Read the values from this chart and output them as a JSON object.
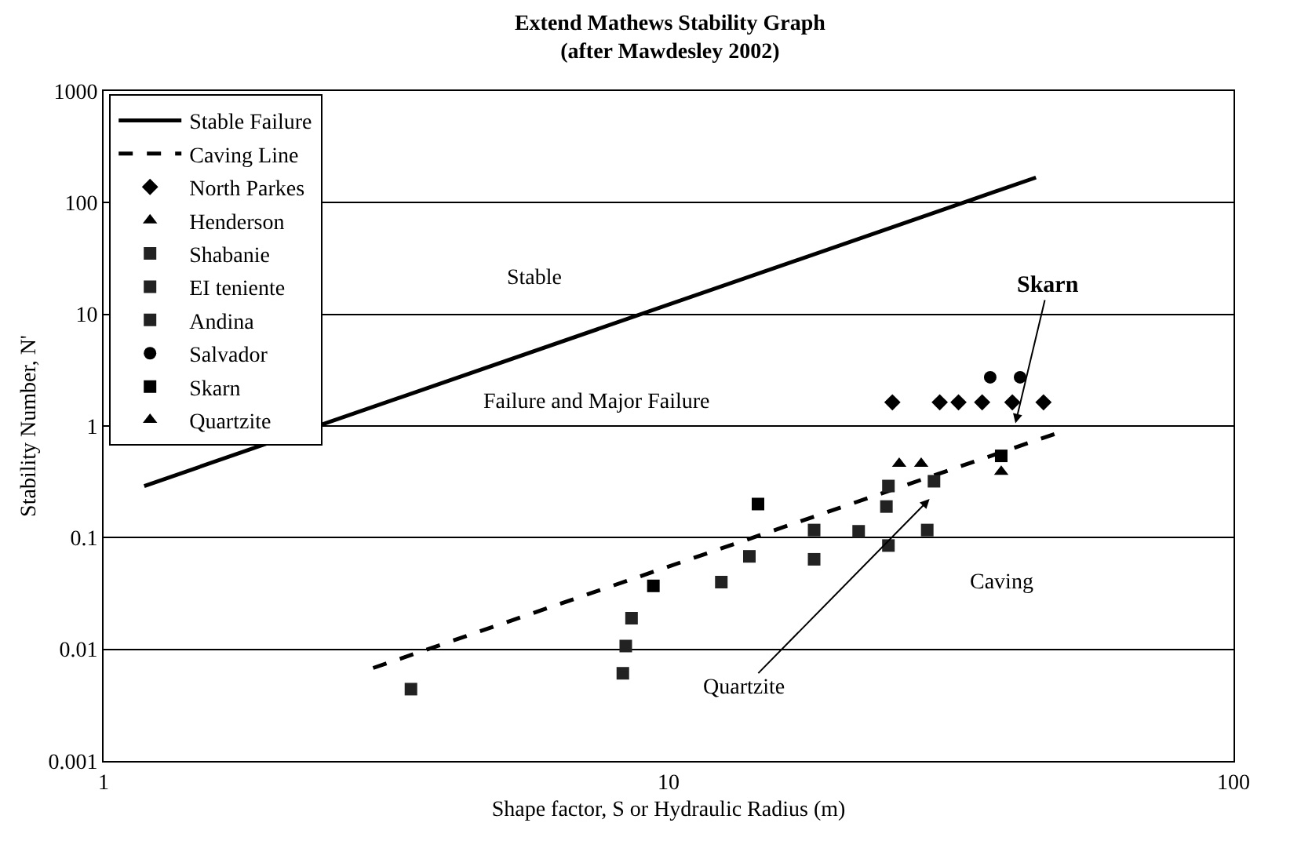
{
  "chart_data": {
    "type": "scatter",
    "title": "Extend Mathews Stability Graph",
    "subtitle": "(after Mawdesley 2002)",
    "xlabel": "Shape factor, S or Hydraulic Radius (m)",
    "ylabel": "Stability Number, N'",
    "log": "xy",
    "xlim": [
      1,
      100
    ],
    "xticks": [
      1,
      10,
      100
    ],
    "ylim": [
      0.001,
      1000
    ],
    "yticks": [
      0.001,
      0.01,
      0.1,
      1,
      10,
      100,
      1000
    ],
    "grid": "y",
    "legend": "top left",
    "series": [
      {
        "name": "Stable Failure",
        "type": "line",
        "line_style": "solid",
        "marker": "none",
        "color": "#000000",
        "x": [
          1.18,
          44.7
        ],
        "values": [
          0.29,
          168
        ]
      },
      {
        "name": "Caving Line",
        "type": "line",
        "line_style": "dashed",
        "marker": "none",
        "color": "#000000",
        "x": [
          3.0,
          48.3
        ],
        "values": [
          0.0068,
          0.85
        ]
      },
      {
        "name": "North Parkes",
        "marker": "diamond",
        "color": "#000000",
        "x": [
          24.9,
          30.2,
          32.6,
          35.9,
          40.6,
          46.1
        ],
        "values": [
          1.63,
          1.63,
          1.63,
          1.63,
          1.63,
          1.63
        ]
      },
      {
        "name": "Henderson",
        "marker": "triangle",
        "color": "#000000",
        "x": [
          25.6,
          28.0
        ],
        "values": [
          0.46,
          0.46
        ]
      },
      {
        "name": "Shabanie",
        "marker": "square",
        "color": "#222222",
        "x": [
          8.4,
          8.6,
          13.9,
          24.5,
          29.5
        ],
        "values": [
          0.0107,
          0.019,
          0.068,
          0.29,
          0.32
        ]
      },
      {
        "name": "EI teniente",
        "marker": "square",
        "color": "#222222",
        "x": [
          3.5,
          18.1,
          24.3,
          24.5
        ],
        "values": [
          0.0044,
          0.117,
          0.19,
          0.085
        ]
      },
      {
        "name": "Andina",
        "marker": "square",
        "color": "#222222",
        "x": [
          8.3,
          12.4,
          18.1,
          21.7,
          28.7
        ],
        "values": [
          0.0061,
          0.04,
          0.064,
          0.114,
          0.117
        ]
      },
      {
        "name": "Salvador",
        "marker": "circle",
        "color": "#000000",
        "x": [
          37.1,
          41.9
        ],
        "values": [
          2.73,
          2.73
        ]
      },
      {
        "name": "Skarn",
        "marker": "square",
        "color": "#000000",
        "x": [
          9.4,
          14.4,
          38.8
        ],
        "values": [
          0.037,
          0.2,
          0.54
        ]
      },
      {
        "name": "Quartzite",
        "marker": "triangle",
        "color": "#000000",
        "x": [
          38.8
        ],
        "values": [
          0.39
        ]
      }
    ],
    "annotations": [
      "Stable",
      "Failure and Major Failure",
      "Caving",
      "Skarn",
      "Quartzite"
    ]
  }
}
